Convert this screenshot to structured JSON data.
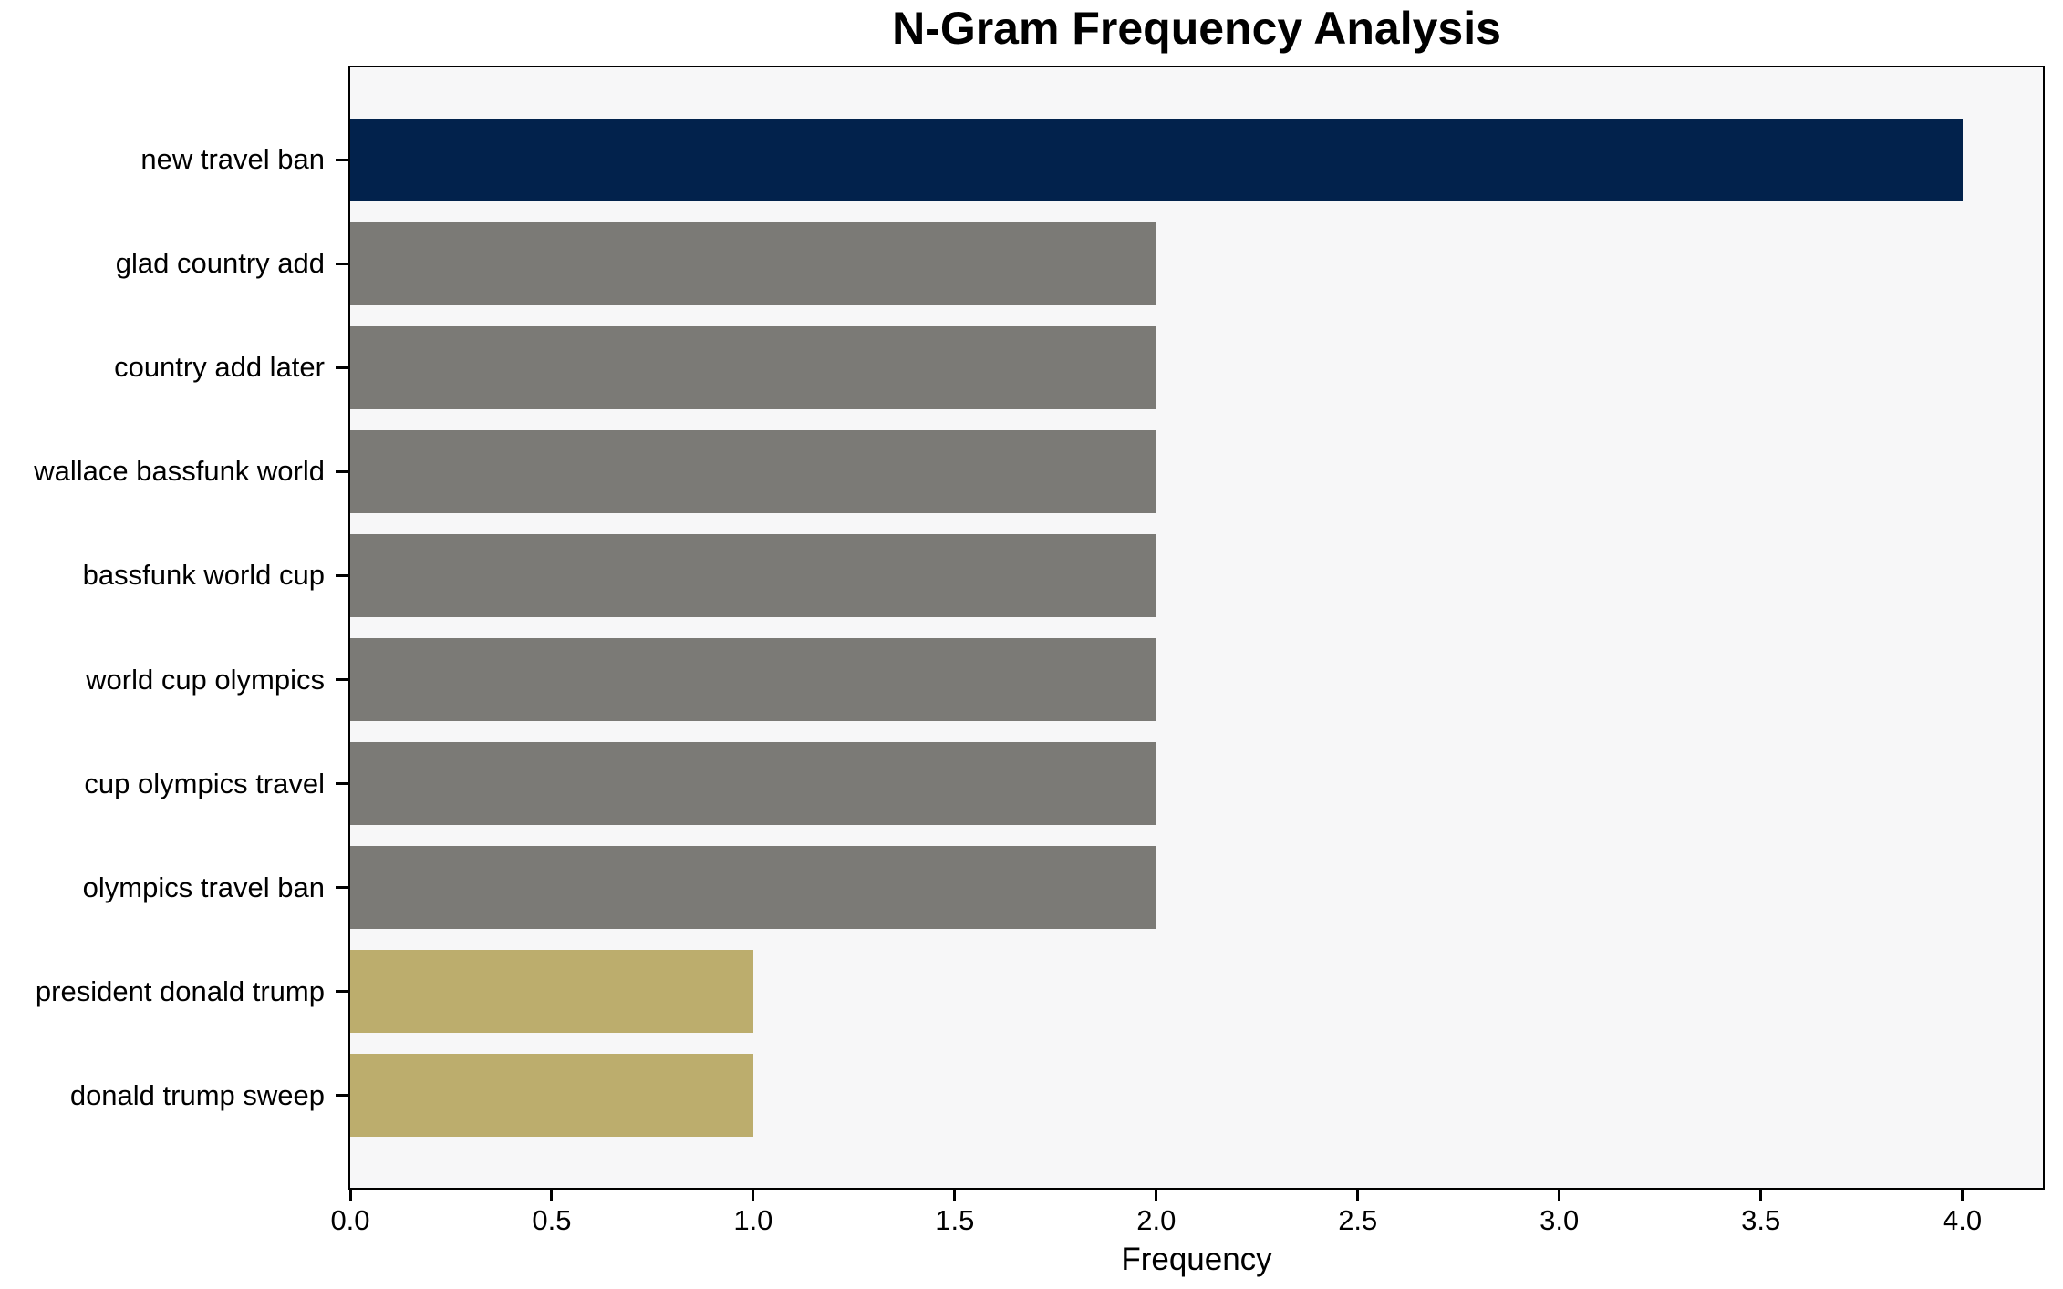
{
  "chart_data": {
    "type": "bar",
    "orientation": "horizontal",
    "title": "N-Gram Frequency Analysis",
    "xlabel": "Frequency",
    "ylabel": "",
    "categories": [
      "new travel ban",
      "glad country add",
      "country add later",
      "wallace bassfunk world",
      "bassfunk world cup",
      "world cup olympics",
      "cup olympics travel",
      "olympics travel ban",
      "president donald trump",
      "donald trump sweep"
    ],
    "values": [
      4,
      2,
      2,
      2,
      2,
      2,
      2,
      2,
      1,
      1
    ],
    "bar_colors": [
      "#02224c",
      "#7b7a76",
      "#7b7a76",
      "#7b7a76",
      "#7b7a76",
      "#7b7a76",
      "#7b7a76",
      "#7b7a76",
      "#bcad6d",
      "#bcad6d"
    ],
    "xlim": [
      0,
      4.2
    ],
    "xticks": [
      "0.0",
      "0.5",
      "1.0",
      "1.5",
      "2.0",
      "2.5",
      "3.0",
      "3.5",
      "4.0"
    ],
    "xtick_values": [
      0,
      0.5,
      1,
      1.5,
      2,
      2.5,
      3,
      3.5,
      4
    ],
    "grid": false,
    "legend": null,
    "bar_height_fraction": 0.8,
    "plot_bg": "#f7f7f8",
    "figure_bg": "#ffffff",
    "spine_color": "#000000"
  }
}
